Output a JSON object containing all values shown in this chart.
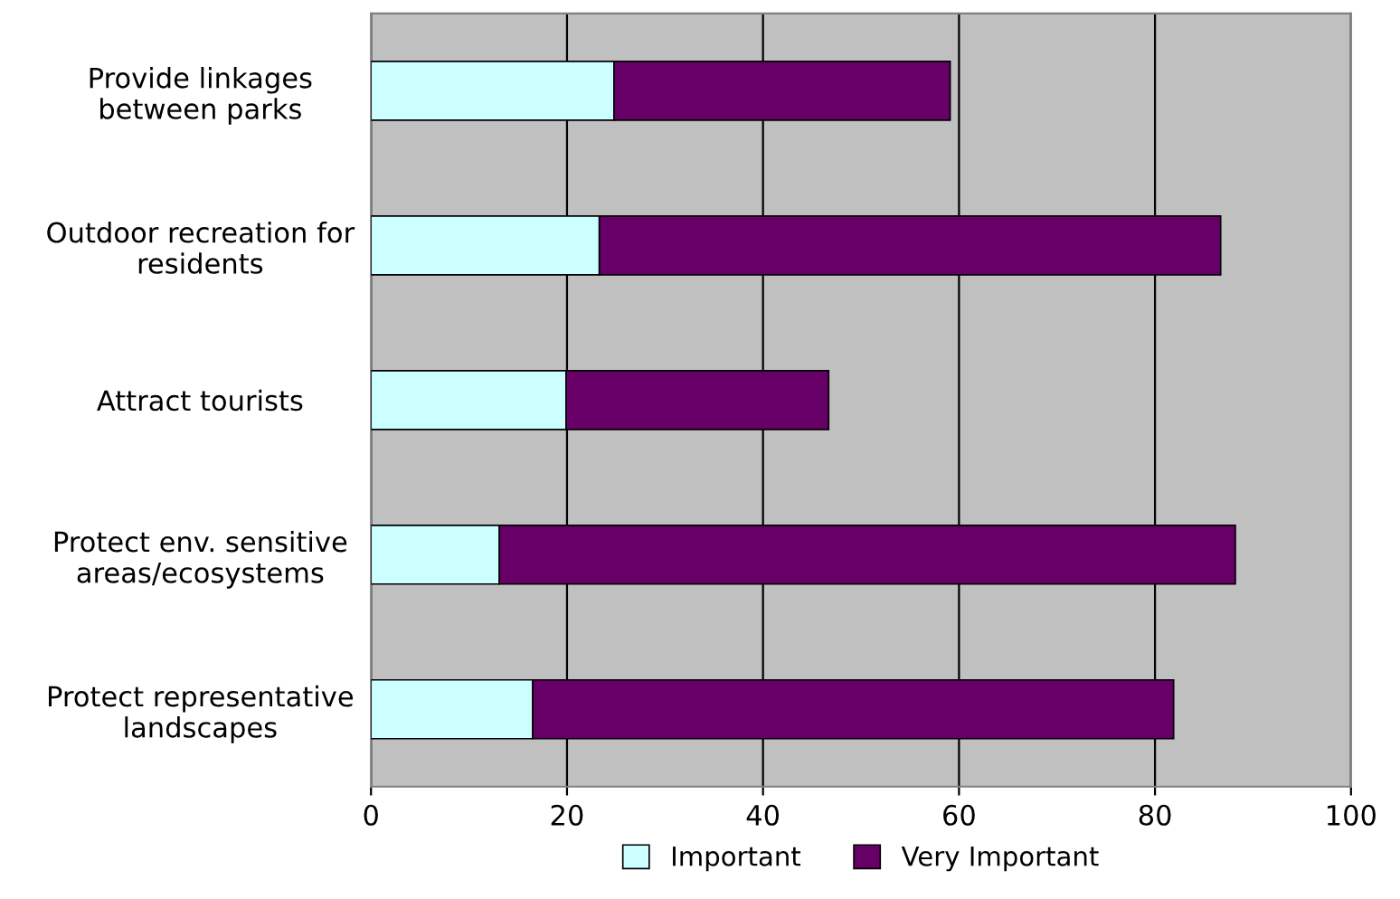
{
  "chart_data": {
    "type": "bar",
    "orientation": "horizontal",
    "stacked": true,
    "categories": [
      "Provide linkages\nbetween parks",
      "Outdoor recreation for\nresidents",
      "Attract tourists",
      "Protect env. sensitive\nareas/ecosystems",
      "Protect representative\nlandscapes"
    ],
    "series": [
      {
        "name": "Important",
        "color": "#ccffff",
        "values": [
          24.8,
          23.3,
          19.9,
          13.1,
          16.5
        ]
      },
      {
        "name": "Very Important",
        "color": "#660066",
        "values": [
          34.3,
          63.4,
          26.8,
          75.1,
          65.4
        ]
      }
    ],
    "xlim": [
      0,
      100
    ],
    "xticks": [
      0,
      20,
      40,
      60,
      80,
      100
    ],
    "grid": "x",
    "legend": "bottom"
  }
}
